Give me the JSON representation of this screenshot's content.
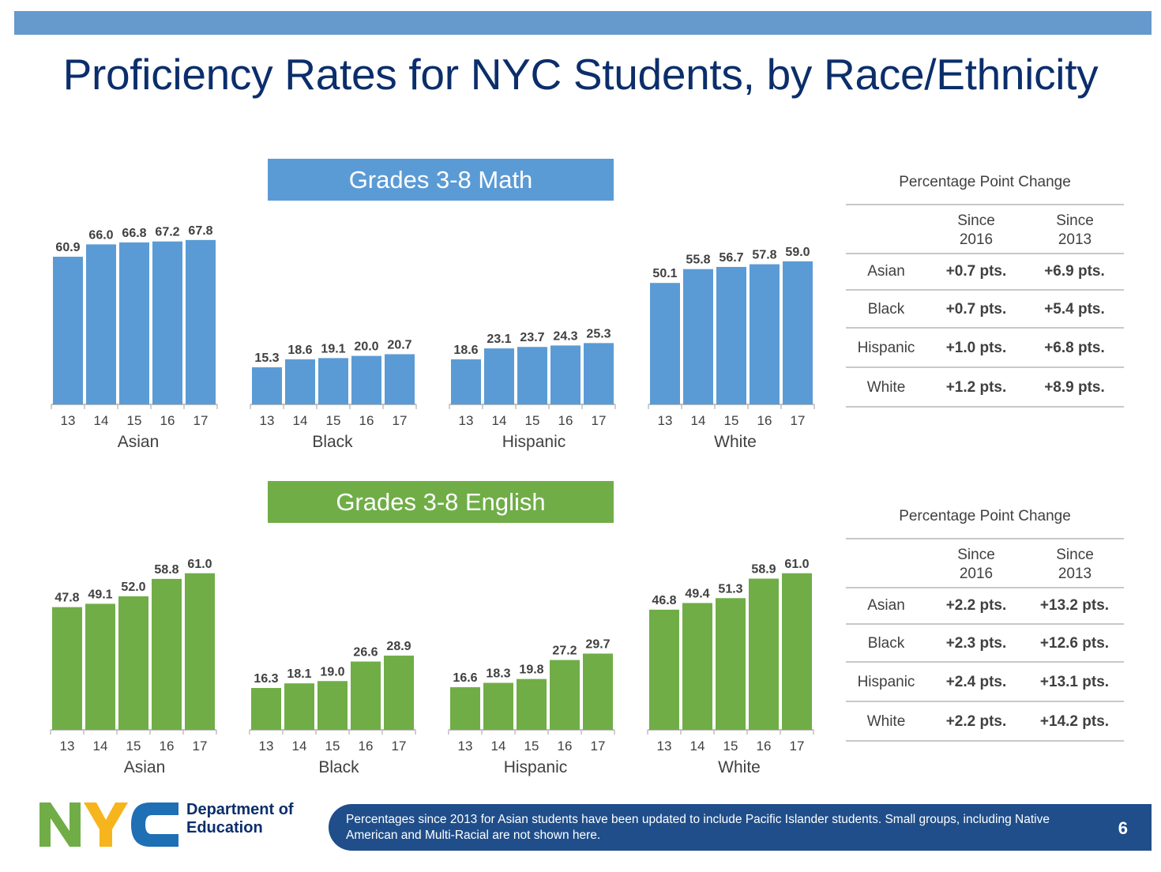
{
  "title": "Proficiency Rates for NYC Students, by Race/Ethnicity",
  "colors": {
    "math": "#5b9bd5",
    "english": "#70ad47",
    "navy": "#0b2e6b",
    "topbar": "#6699cc"
  },
  "chart_data": [
    {
      "type": "bar",
      "title": "Grades 3-8 Math",
      "group_labels": [
        "Asian",
        "Black",
        "Hispanic",
        "White"
      ],
      "categories": [
        "13",
        "14",
        "15",
        "16",
        "17"
      ],
      "series": [
        {
          "group": "Asian",
          "values": [
            60.9,
            66.0,
            66.8,
            67.2,
            67.8
          ]
        },
        {
          "group": "Black",
          "values": [
            15.3,
            18.6,
            19.1,
            20.0,
            20.7
          ]
        },
        {
          "group": "Hispanic",
          "values": [
            18.6,
            23.1,
            23.7,
            24.3,
            25.3
          ]
        },
        {
          "group": "White",
          "values": [
            50.1,
            55.8,
            56.7,
            57.8,
            59.0
          ]
        }
      ],
      "data_labels": [
        [
          "60.9",
          "66.0",
          "66.8",
          "67.2",
          "67.8"
        ],
        [
          "15.3",
          "18.6",
          "19.1",
          "20.0",
          "20.7"
        ],
        [
          "18.6",
          "23.1",
          "23.7",
          "24.3",
          "25.3"
        ],
        [
          "50.1",
          "55.8",
          "56.7",
          "57.8",
          "59.0"
        ]
      ]
    },
    {
      "type": "bar",
      "title": "Grades 3-8 English",
      "group_labels": [
        "Asian",
        "Black",
        "Hispanic",
        "White"
      ],
      "categories": [
        "13",
        "14",
        "15",
        "16",
        "17"
      ],
      "series": [
        {
          "group": "Asian",
          "values": [
            47.8,
            49.1,
            52.0,
            58.8,
            61.0
          ]
        },
        {
          "group": "Black",
          "values": [
            16.3,
            18.1,
            19.0,
            26.6,
            28.9
          ]
        },
        {
          "group": "Hispanic",
          "values": [
            16.6,
            18.3,
            19.8,
            27.2,
            29.7
          ]
        },
        {
          "group": "White",
          "values": [
            46.8,
            49.4,
            51.3,
            58.9,
            61.0
          ]
        }
      ],
      "data_labels": [
        [
          "47.8",
          "49.1",
          "52.0",
          "58.8",
          "61.0"
        ],
        [
          "16.3",
          "18.1",
          "19.0",
          "26.6",
          "28.9"
        ],
        [
          "16.6",
          "18.3",
          "19.8",
          "27.2",
          "29.7"
        ],
        [
          "46.8",
          "49.4",
          "51.3",
          "58.9",
          "61.0"
        ]
      ]
    }
  ],
  "math_table": {
    "title": "Percentage Point Change",
    "col1": "Since\n2016",
    "col2": "Since\n2013",
    "rows": [
      {
        "label": "Asian",
        "since_2016": "+0.7 pts.",
        "since_2013": "+6.9 pts."
      },
      {
        "label": "Black",
        "since_2016": "+0.7 pts.",
        "since_2013": "+5.4 pts."
      },
      {
        "label": "Hispanic",
        "since_2016": "+1.0 pts.",
        "since_2013": "+6.8 pts."
      },
      {
        "label": "White",
        "since_2016": "+1.2 pts.",
        "since_2013": "+8.9 pts."
      }
    ]
  },
  "english_table": {
    "title": "Percentage Point Change",
    "col1": "Since\n2016",
    "col2": "Since\n2013",
    "rows": [
      {
        "label": "Asian",
        "since_2016": "+2.2 pts.",
        "since_2013": "+13.2 pts."
      },
      {
        "label": "Black",
        "since_2016": "+2.3 pts.",
        "since_2013": "+12.6 pts."
      },
      {
        "label": "Hispanic",
        "since_2016": "+2.4 pts.",
        "since_2013": "+13.1 pts."
      },
      {
        "label": "White",
        "since_2016": "+2.2 pts.",
        "since_2013": "+14.2 pts."
      }
    ]
  },
  "footer": {
    "logo_text": "NYC",
    "dept_line1": "Department of",
    "dept_line2": "Education",
    "footnote": "Percentages since 2013 for Asian students have been updated to include Pacific Islander students. Small groups, including Native American and Multi-Racial are not shown here.",
    "page_number": "6"
  }
}
